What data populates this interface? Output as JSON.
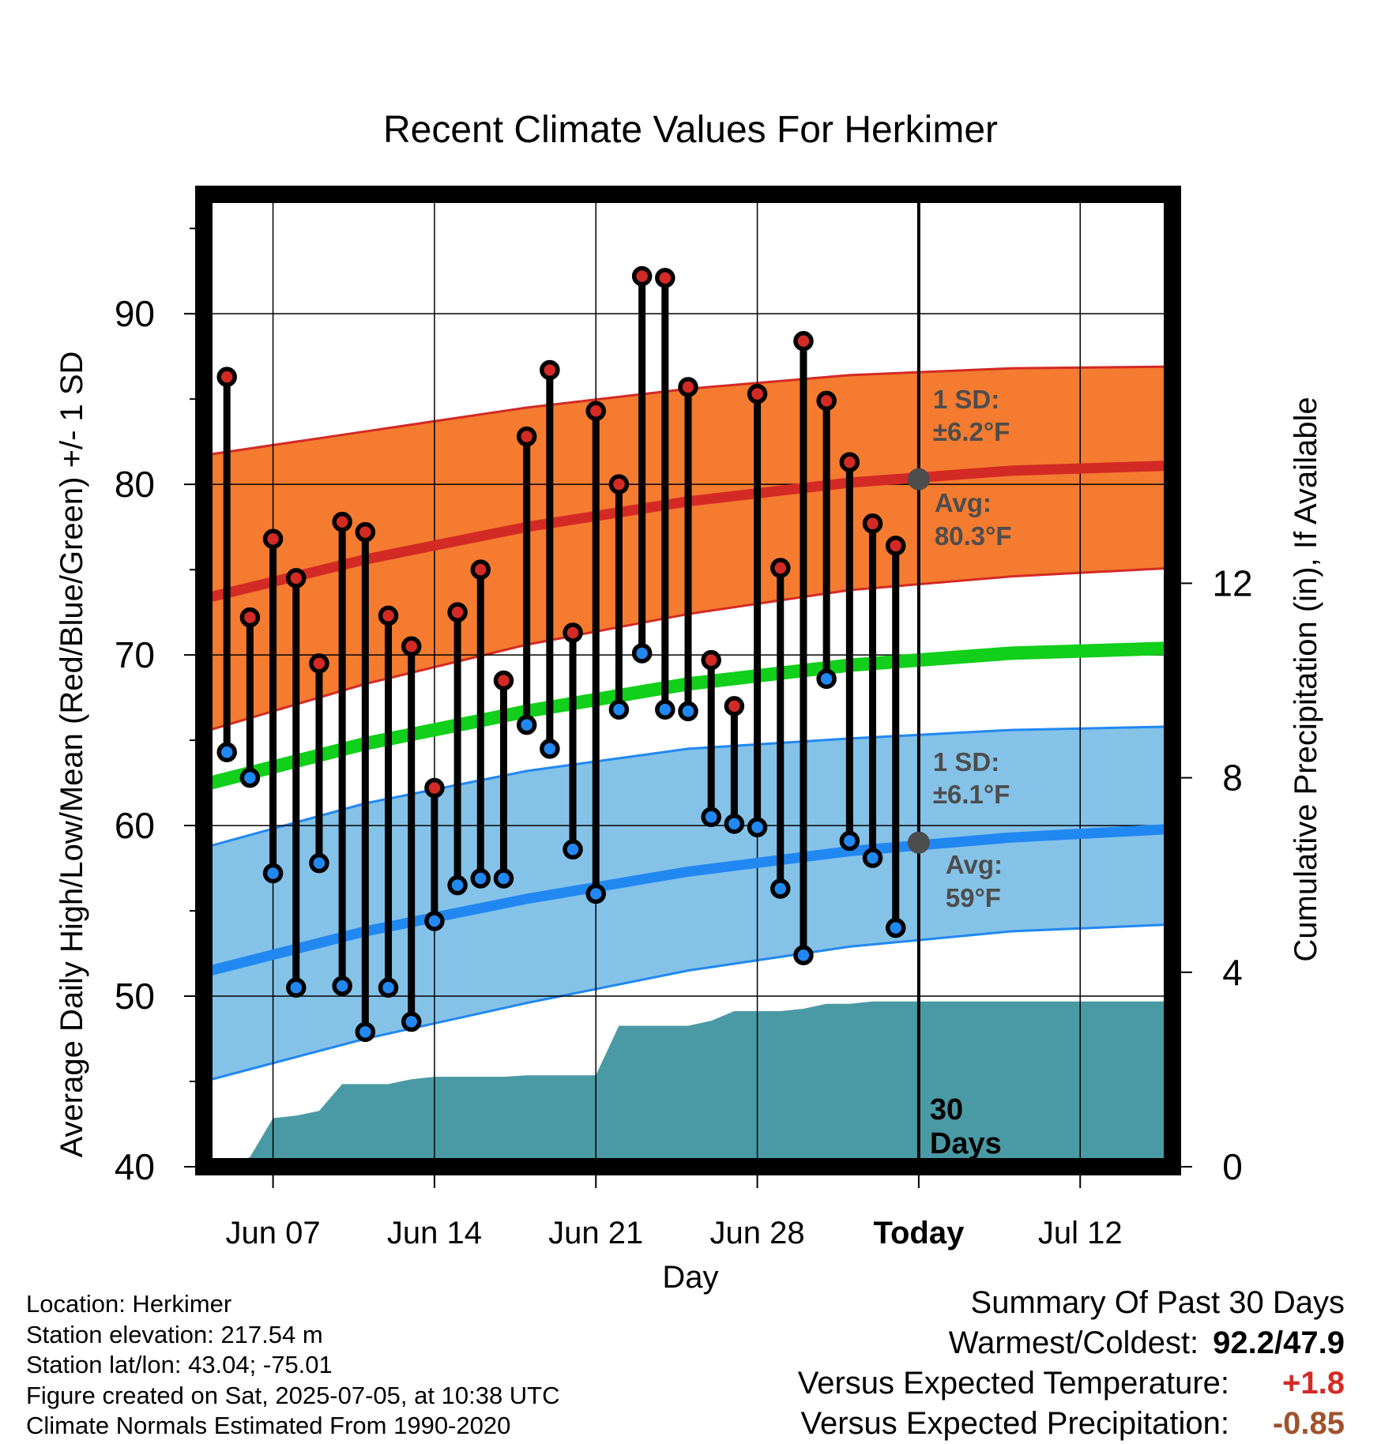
{
  "chart_data": {
    "type": "line",
    "title": "Recent Climate Values For Herkimer",
    "xlabel": "Day",
    "ylabel": "Average Daily High/Low/Mean (Red/Blue/Green) +/- 1 SD",
    "y2label": "Cumulative Precipitation (in), If Available",
    "x_range": [
      "2025-06-04",
      "2025-07-16"
    ],
    "ylim": [
      40,
      97
    ],
    "y2lim": [
      0,
      20
    ],
    "yticks": [
      40,
      50,
      60,
      70,
      80,
      90
    ],
    "y2ticks": [
      0,
      4,
      8,
      12
    ],
    "xticks": [
      {
        "date": "2025-06-07",
        "label": "Jun 07"
      },
      {
        "date": "2025-06-14",
        "label": "Jun 14"
      },
      {
        "date": "2025-06-21",
        "label": "Jun 21"
      },
      {
        "date": "2025-06-28",
        "label": "Jun 28"
      },
      {
        "date": "2025-07-05",
        "label": "Today"
      },
      {
        "date": "2025-07-12",
        "label": "Jul 12"
      }
    ],
    "grid": true,
    "today": "2025-07-05",
    "today_label": [
      "30",
      "Days"
    ],
    "colors": {
      "high_band": "#f47b2f",
      "high_line": "#d42a25",
      "low_band": "#85c2e8",
      "low_line": "#2188f2",
      "mean_line": "#11cf1a",
      "precip": "#4a9aa5",
      "annotation": "#4d4d4d",
      "positive": "#d42a25",
      "negative": "#a0522d"
    },
    "normals": {
      "dates": [
        "2025-06-04",
        "2025-06-11",
        "2025-06-18",
        "2025-06-25",
        "2025-07-02",
        "2025-07-09",
        "2025-07-16"
      ],
      "high_avg": [
        73.3,
        75.6,
        77.5,
        79.0,
        80.1,
        80.8,
        81.1
      ],
      "high_upper": [
        81.7,
        83.1,
        84.5,
        85.6,
        86.4,
        86.8,
        86.9
      ],
      "high_lower": [
        65.5,
        68.3,
        70.6,
        72.4,
        73.8,
        74.6,
        75.1
      ],
      "mean": [
        62.4,
        64.8,
        66.7,
        68.3,
        69.4,
        70.1,
        70.4
      ],
      "low_avg": [
        51.4,
        53.8,
        55.7,
        57.3,
        58.5,
        59.3,
        59.8
      ],
      "low_upper": [
        58.7,
        61.3,
        63.2,
        64.5,
        65.1,
        65.6,
        65.8
      ],
      "low_lower": [
        45.0,
        47.5,
        49.6,
        51.5,
        52.9,
        53.8,
        54.2
      ]
    },
    "annotations": {
      "high_sd": {
        "label": "1 SD:",
        "value": "±6.2°F"
      },
      "high_avg": {
        "label": "Avg:",
        "value": "80.3°F",
        "y": 80.3
      },
      "low_sd": {
        "label": "1 SD:",
        "value": "±6.1°F"
      },
      "low_avg": {
        "label": "Avg:",
        "value": "59°F",
        "y": 59
      }
    },
    "series": [
      {
        "name": "High",
        "x": [
          "2025-06-05",
          "2025-06-06",
          "2025-06-07",
          "2025-06-08",
          "2025-06-09",
          "2025-06-10",
          "2025-06-11",
          "2025-06-12",
          "2025-06-13",
          "2025-06-14",
          "2025-06-15",
          "2025-06-16",
          "2025-06-17",
          "2025-06-18",
          "2025-06-19",
          "2025-06-20",
          "2025-06-21",
          "2025-06-22",
          "2025-06-23",
          "2025-06-24",
          "2025-06-25",
          "2025-06-26",
          "2025-06-27",
          "2025-06-28",
          "2025-06-29",
          "2025-06-30",
          "2025-07-01",
          "2025-07-02",
          "2025-07-03",
          "2025-07-04"
        ],
        "values": [
          86.3,
          72.2,
          76.8,
          74.5,
          69.5,
          77.8,
          77.2,
          72.3,
          70.5,
          62.2,
          72.5,
          75.0,
          68.5,
          82.8,
          86.7,
          71.3,
          84.3,
          80.0,
          92.2,
          92.1,
          85.7,
          69.7,
          67.0,
          85.3,
          75.1,
          88.4,
          84.9,
          81.3,
          77.7,
          76.4
        ]
      },
      {
        "name": "Low",
        "x": [
          "2025-06-05",
          "2025-06-06",
          "2025-06-07",
          "2025-06-08",
          "2025-06-09",
          "2025-06-10",
          "2025-06-11",
          "2025-06-12",
          "2025-06-13",
          "2025-06-14",
          "2025-06-15",
          "2025-06-16",
          "2025-06-17",
          "2025-06-18",
          "2025-06-19",
          "2025-06-20",
          "2025-06-21",
          "2025-06-22",
          "2025-06-23",
          "2025-06-24",
          "2025-06-25",
          "2025-06-26",
          "2025-06-27",
          "2025-06-28",
          "2025-06-29",
          "2025-06-30",
          "2025-07-01",
          "2025-07-02",
          "2025-07-03",
          "2025-07-04"
        ],
        "values": [
          64.3,
          62.8,
          57.2,
          50.5,
          57.8,
          50.6,
          47.9,
          50.5,
          48.5,
          54.4,
          56.5,
          56.9,
          56.9,
          65.9,
          64.5,
          58.6,
          56.0,
          66.8,
          70.1,
          66.8,
          66.7,
          60.5,
          60.1,
          59.9,
          56.3,
          52.4,
          68.6,
          59.1,
          58.1,
          54.0
        ]
      },
      {
        "name": "Precipitation",
        "x": [
          "2025-06-04",
          "2025-06-05",
          "2025-06-06",
          "2025-06-07",
          "2025-06-08",
          "2025-06-09",
          "2025-06-10",
          "2025-06-11",
          "2025-06-12",
          "2025-06-13",
          "2025-06-14",
          "2025-06-15",
          "2025-06-16",
          "2025-06-17",
          "2025-06-18",
          "2025-06-19",
          "2025-06-20",
          "2025-06-21",
          "2025-06-22",
          "2025-06-23",
          "2025-06-24",
          "2025-06-25",
          "2025-06-26",
          "2025-06-27",
          "2025-06-28",
          "2025-06-29",
          "2025-06-30",
          "2025-07-01",
          "2025-07-02",
          "2025-07-03",
          "2025-07-04",
          "2025-07-05",
          "2025-07-16"
        ],
        "values": [
          0.0,
          0.0,
          0.2,
          1.0,
          1.05,
          1.15,
          1.7,
          1.7,
          1.7,
          1.8,
          1.85,
          1.85,
          1.85,
          1.85,
          1.88,
          1.88,
          1.88,
          1.88,
          2.9,
          2.9,
          2.9,
          2.9,
          3.0,
          3.2,
          3.2,
          3.2,
          3.25,
          3.35,
          3.35,
          3.4,
          3.4,
          3.4,
          3.4
        ]
      }
    ]
  },
  "info": {
    "location": "Location: Herkimer",
    "elevation": "Station elevation: 217.54 m",
    "latlon": "Station lat/lon: 43.04; -75.01",
    "created": "Figure created on Sat, 2025-07-05, at 10:38 UTC",
    "normals": "Climate Normals Estimated From 1990-2020"
  },
  "summary": {
    "title": "Summary Of Past 30 Days",
    "warmest_coldest_label": "Warmest/Coldest:",
    "warmest_coldest_value": "92.2/47.9",
    "temp_label": "Versus Expected Temperature:",
    "temp_value": "+1.8",
    "precip_label": "Versus Expected Precipitation:",
    "precip_value": "-0.85"
  }
}
